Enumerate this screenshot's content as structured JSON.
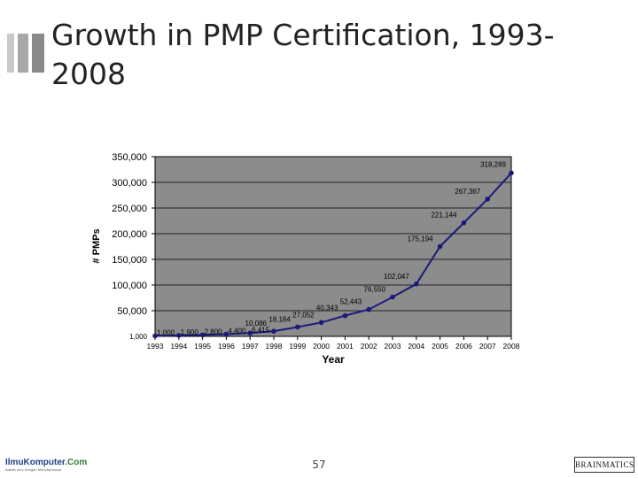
{
  "slide": {
    "title": "Growth in PMP Certification, 1993-2008",
    "page_number": "57"
  },
  "logos": {
    "left_main": "IlmuKomputer",
    "left_suffix": ".Com",
    "left_tagline": "Ikatlah Ilmu Dengan Menuliskannya",
    "right": "BRAINMATICS"
  },
  "chart_data": {
    "type": "line",
    "x": [
      "1993",
      "1994",
      "1995",
      "1996",
      "1997",
      "1998",
      "1999",
      "2000",
      "2001",
      "2002",
      "2003",
      "2004",
      "2005",
      "2006",
      "2007",
      "2008"
    ],
    "series": [
      {
        "values": [
          1000,
          1900,
          2800,
          4400,
          6415,
          10086,
          18184,
          27052,
          40343,
          52443,
          76550,
          102047,
          175194,
          221144,
          267367,
          318289
        ],
        "point_labels": [
          "1,000",
          "1,900",
          "2,800",
          "4,400",
          "6,415",
          "10,086",
          "18,184",
          "27,052",
          "40,343",
          "52,443",
          "76,550",
          "102,047",
          "175,194",
          "221,144",
          "267,367",
          "318,289"
        ]
      }
    ],
    "y_ticks": [
      50000,
      100000,
      150000,
      200000,
      250000,
      300000,
      350000
    ],
    "y_tick_labels": [
      "50,000",
      "100,000",
      "150,000",
      "200,000",
      "250,000",
      "300,000",
      "350,000"
    ],
    "y_min_label": "1,000",
    "ylim": [
      0,
      350000
    ],
    "xlabel": "Year",
    "ylabel": "# PMPs",
    "grid": true,
    "colors": {
      "plot_bg": "#8c8c8c",
      "line": "#1a1a7a",
      "grid": "#000000"
    }
  }
}
